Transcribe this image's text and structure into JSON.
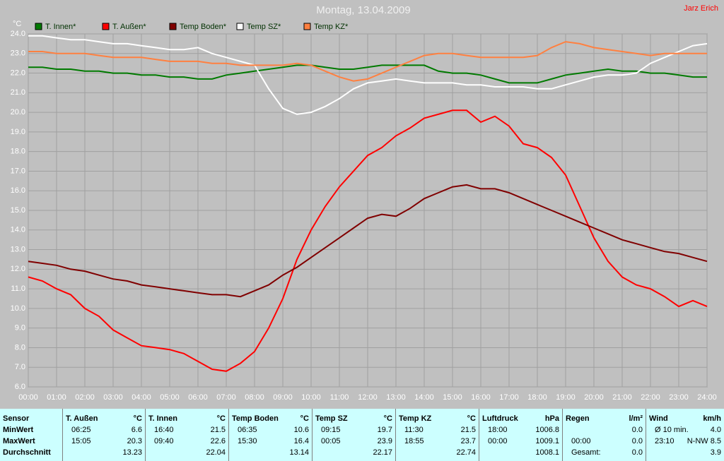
{
  "chart_data": {
    "type": "line",
    "title": "Montag, 13.04.2009",
    "author": "Jarz Erich",
    "y_label": "°C",
    "xlim": [
      0,
      24
    ],
    "ylim": [
      6,
      24
    ],
    "grid": true,
    "xticks": [
      {
        "value": 0,
        "label": "00:00"
      },
      {
        "value": 1,
        "label": "01:00"
      },
      {
        "value": 2,
        "label": "02:00"
      },
      {
        "value": 3,
        "label": "03:00"
      },
      {
        "value": 4,
        "label": "04:00"
      },
      {
        "value": 5,
        "label": "05:00"
      },
      {
        "value": 6,
        "label": "06:00"
      },
      {
        "value": 7,
        "label": "07:00"
      },
      {
        "value": 8,
        "label": "08:00"
      },
      {
        "value": 9,
        "label": "09:00"
      },
      {
        "value": 10,
        "label": "10:00"
      },
      {
        "value": 11,
        "label": "11:00"
      },
      {
        "value": 12,
        "label": "12:00"
      },
      {
        "value": 13,
        "label": "13:00"
      },
      {
        "value": 14,
        "label": "14:00"
      },
      {
        "value": 15,
        "label": "15:00"
      },
      {
        "value": 16,
        "label": "16:00"
      },
      {
        "value": 17,
        "label": "17:00"
      },
      {
        "value": 18,
        "label": "18:00"
      },
      {
        "value": 19,
        "label": "19:00"
      },
      {
        "value": 20,
        "label": "20:00"
      },
      {
        "value": 21,
        "label": "21:00"
      },
      {
        "value": 22,
        "label": "22:00"
      },
      {
        "value": 23,
        "label": "23:00"
      },
      {
        "value": 24,
        "label": "24:00"
      }
    ],
    "yticks": [
      {
        "value": 6,
        "label": "6.0"
      },
      {
        "value": 7,
        "label": "7.0"
      },
      {
        "value": 8,
        "label": "8.0"
      },
      {
        "value": 9,
        "label": "9.0"
      },
      {
        "value": 10,
        "label": "10.0"
      },
      {
        "value": 11,
        "label": "11.0"
      },
      {
        "value": 12,
        "label": "12.0"
      },
      {
        "value": 13,
        "label": "13.0"
      },
      {
        "value": 14,
        "label": "14.0"
      },
      {
        "value": 15,
        "label": "15.0"
      },
      {
        "value": 16,
        "label": "16.0"
      },
      {
        "value": 17,
        "label": "17.0"
      },
      {
        "value": 18,
        "label": "18.0"
      },
      {
        "value": 19,
        "label": "19.0"
      },
      {
        "value": 20,
        "label": "20.0"
      },
      {
        "value": 21,
        "label": "21.0"
      },
      {
        "value": 22,
        "label": "22.0"
      },
      {
        "value": 23,
        "label": "23.0"
      },
      {
        "value": 24,
        "label": "24.0"
      }
    ],
    "x": [
      0,
      0.5,
      1,
      1.5,
      2,
      2.5,
      3,
      3.5,
      4,
      4.5,
      5,
      5.5,
      6,
      6.5,
      7,
      7.5,
      8,
      8.5,
      9,
      9.5,
      10,
      10.5,
      11,
      11.5,
      12,
      12.5,
      13,
      13.5,
      14,
      14.5,
      15,
      15.5,
      16,
      16.5,
      17,
      17.5,
      18,
      18.5,
      19,
      19.5,
      20,
      20.5,
      21,
      21.5,
      22,
      22.5,
      23,
      23.5,
      24
    ],
    "series": [
      {
        "name": "T. Innen*",
        "color": "#007a00",
        "values": [
          22.3,
          22.3,
          22.2,
          22.2,
          22.1,
          22.1,
          22.0,
          22.0,
          21.9,
          21.9,
          21.8,
          21.8,
          21.7,
          21.7,
          21.9,
          22.0,
          22.1,
          22.2,
          22.3,
          22.4,
          22.4,
          22.3,
          22.2,
          22.2,
          22.3,
          22.4,
          22.4,
          22.4,
          22.4,
          22.1,
          22.0,
          22.0,
          21.9,
          21.7,
          21.5,
          21.5,
          21.5,
          21.7,
          21.9,
          22.0,
          22.1,
          22.2,
          22.1,
          22.1,
          22.0,
          22.0,
          21.9,
          21.8,
          21.8
        ]
      },
      {
        "name": "T. Außen*",
        "color": "#ff0000",
        "values": [
          11.6,
          11.4,
          11.0,
          10.7,
          10.0,
          9.6,
          8.9,
          8.5,
          8.1,
          8.0,
          7.9,
          7.7,
          7.3,
          6.9,
          6.8,
          7.2,
          7.8,
          9.0,
          10.5,
          12.5,
          14.0,
          15.2,
          16.2,
          17.0,
          17.8,
          18.2,
          18.8,
          19.2,
          19.7,
          19.9,
          20.1,
          20.1,
          19.5,
          19.8,
          19.3,
          18.4,
          18.2,
          17.7,
          16.8,
          15.2,
          13.6,
          12.4,
          11.6,
          11.2,
          11.0,
          10.6,
          10.1,
          10.4,
          10.1
        ]
      },
      {
        "name": "Temp Boden*",
        "color": "#800000",
        "values": [
          12.4,
          12.3,
          12.2,
          12.0,
          11.9,
          11.7,
          11.5,
          11.4,
          11.2,
          11.1,
          11.0,
          10.9,
          10.8,
          10.7,
          10.7,
          10.6,
          10.9,
          11.2,
          11.7,
          12.1,
          12.6,
          13.1,
          13.6,
          14.1,
          14.6,
          14.8,
          14.7,
          15.1,
          15.6,
          15.9,
          16.2,
          16.3,
          16.1,
          16.1,
          15.9,
          15.6,
          15.3,
          15.0,
          14.7,
          14.4,
          14.1,
          13.8,
          13.5,
          13.3,
          13.1,
          12.9,
          12.8,
          12.6,
          12.4
        ]
      },
      {
        "name": "Temp SZ*",
        "color": "#ffffff",
        "values": [
          23.9,
          23.9,
          23.8,
          23.7,
          23.7,
          23.6,
          23.5,
          23.5,
          23.4,
          23.3,
          23.2,
          23.2,
          23.3,
          23.0,
          22.8,
          22.6,
          22.4,
          21.2,
          20.2,
          19.9,
          20.0,
          20.3,
          20.7,
          21.2,
          21.5,
          21.6,
          21.7,
          21.6,
          21.5,
          21.5,
          21.5,
          21.4,
          21.4,
          21.3,
          21.3,
          21.3,
          21.2,
          21.2,
          21.4,
          21.6,
          21.8,
          21.9,
          21.9,
          22.0,
          22.5,
          22.8,
          23.1,
          23.4,
          23.5
        ]
      },
      {
        "name": "Temp KZ*",
        "color": "#ff8040",
        "values": [
          23.1,
          23.1,
          23.0,
          23.0,
          23.0,
          22.9,
          22.8,
          22.8,
          22.8,
          22.7,
          22.6,
          22.6,
          22.6,
          22.5,
          22.5,
          22.4,
          22.4,
          22.4,
          22.4,
          22.5,
          22.4,
          22.1,
          21.8,
          21.6,
          21.7,
          22.0,
          22.3,
          22.6,
          22.9,
          23.0,
          23.0,
          22.9,
          22.8,
          22.8,
          22.8,
          22.8,
          22.9,
          23.3,
          23.6,
          23.5,
          23.3,
          23.2,
          23.1,
          23.0,
          22.9,
          23.0,
          23.0,
          23.0,
          23.0
        ]
      }
    ]
  },
  "table": {
    "corner": "Sensor",
    "columns": [
      {
        "name": "T. Außen",
        "unit": "°C"
      },
      {
        "name": "T. Innen",
        "unit": "°C"
      },
      {
        "name": "Temp Boden",
        "unit": "°C"
      },
      {
        "name": "Temp SZ",
        "unit": "°C"
      },
      {
        "name": "Temp KZ",
        "unit": "°C"
      },
      {
        "name": "Luftdruck",
        "unit": "hPa"
      },
      {
        "name": "Regen",
        "unit": "l/m²"
      },
      {
        "name": "Wind",
        "unit": "km/h"
      }
    ],
    "rows": [
      {
        "label": "MinWert",
        "cells": [
          {
            "time": "06:25",
            "value": "6.6"
          },
          {
            "time": "16:40",
            "value": "21.5"
          },
          {
            "time": "06:35",
            "value": "10.6"
          },
          {
            "time": "09:15",
            "value": "19.7"
          },
          {
            "time": "11:30",
            "value": "21.5"
          },
          {
            "time": "18:00",
            "value": "1006.8"
          },
          {
            "value": "0.0"
          },
          {
            "time": "Ø 10 min.",
            "value": "4.0"
          }
        ]
      },
      {
        "label": "MaxWert",
        "cells": [
          {
            "time": "15:05",
            "value": "20.3"
          },
          {
            "time": "09:40",
            "value": "22.6"
          },
          {
            "time": "15:30",
            "value": "16.4"
          },
          {
            "time": "00:05",
            "value": "23.9"
          },
          {
            "time": "18:55",
            "value": "23.7"
          },
          {
            "time": "00:00",
            "value": "1009.1"
          },
          {
            "time": "00:00",
            "value": "0.0"
          },
          {
            "time": "23:10",
            "value": "N-NW 8.5"
          }
        ]
      },
      {
        "label": "Durchschnitt",
        "cells": [
          {
            "value": "13.23"
          },
          {
            "value": "22.04"
          },
          {
            "value": "13.14"
          },
          {
            "value": "22.17"
          },
          {
            "value": "22.74"
          },
          {
            "value": "1008.1"
          },
          {
            "time": "Gesamt:",
            "value": "0.0"
          },
          {
            "value": "3.9"
          }
        ]
      }
    ]
  }
}
